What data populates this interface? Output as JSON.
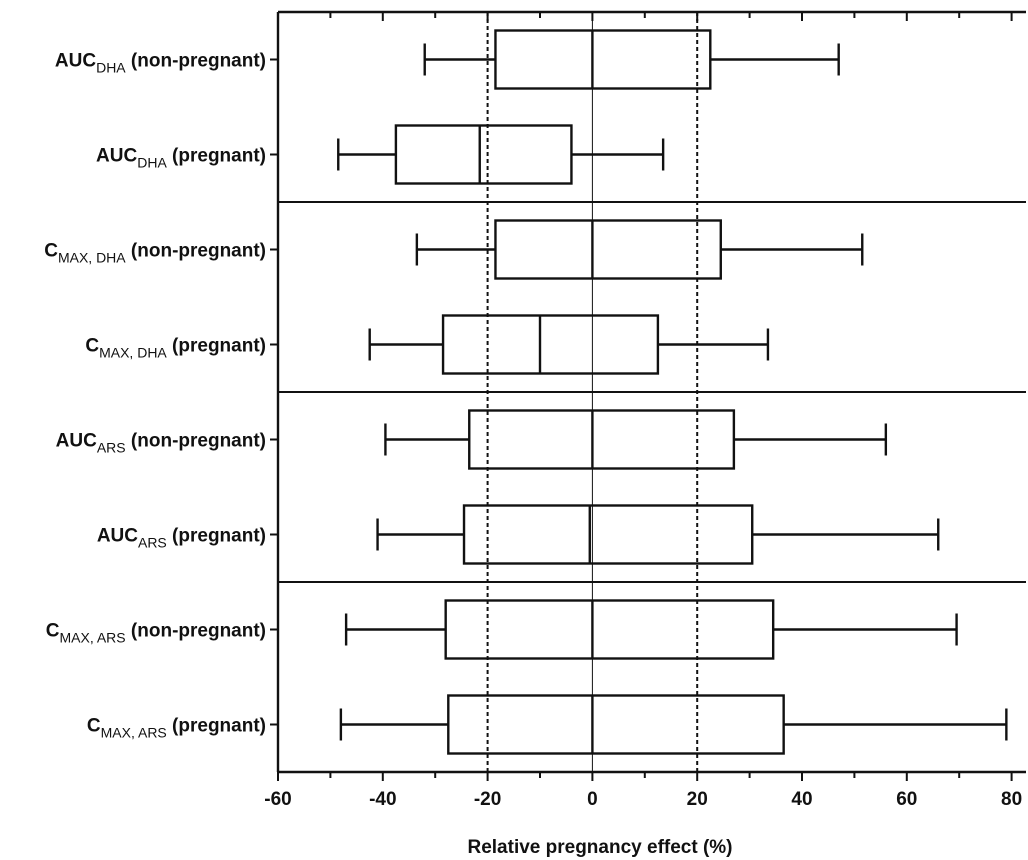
{
  "chart_data": {
    "type": "box",
    "orientation": "horizontal",
    "xlabel": "Relative pregnancy effect (%)",
    "xlim": [
      -60,
      83
    ],
    "xticks": [
      -60,
      -40,
      -20,
      0,
      20,
      40,
      60,
      80
    ],
    "xtick_labels": [
      "-60",
      "-40",
      "-20",
      "0",
      "20",
      "40",
      "60",
      "80"
    ],
    "minor_tick_step": 10,
    "reference_lines": {
      "dashed": [
        -20,
        20
      ],
      "solid": [
        0
      ]
    },
    "group_separators_after": [
      2,
      4,
      6
    ],
    "categories": [
      {
        "main": "AUC",
        "sub": "DHA",
        "suffix": " (non-pregnant)"
      },
      {
        "main": "AUC",
        "sub": "DHA",
        "suffix": " (pregnant)"
      },
      {
        "main": "C",
        "sub": "MAX, DHA",
        "suffix": " (non-pregnant)"
      },
      {
        "main": "C",
        "sub": "MAX, DHA",
        "suffix": " (pregnant)"
      },
      {
        "main": "AUC",
        "sub": "ARS",
        "suffix": " (non-pregnant)"
      },
      {
        "main": "AUC",
        "sub": "ARS",
        "suffix": " (pregnant)"
      },
      {
        "main": "C",
        "sub": "MAX, ARS",
        "suffix": " (non-pregnant)"
      },
      {
        "main": "C",
        "sub": "MAX, ARS",
        "suffix": " (pregnant)"
      }
    ],
    "boxes": [
      {
        "min": -32,
        "q1": -18.5,
        "median": 0,
        "q3": 22.5,
        "max": 47
      },
      {
        "min": -48.5,
        "q1": -37.5,
        "median": -21.5,
        "q3": -4,
        "max": 13.5
      },
      {
        "min": -33.5,
        "q1": -18.5,
        "median": 0,
        "q3": 24.5,
        "max": 51.5
      },
      {
        "min": -42.5,
        "q1": -28.5,
        "median": -10,
        "q3": 12.5,
        "max": 33.5
      },
      {
        "min": -39.5,
        "q1": -23.5,
        "median": 0,
        "q3": 27,
        "max": 56
      },
      {
        "min": -41,
        "q1": -24.5,
        "median": -0.5,
        "q3": 30.5,
        "max": 66
      },
      {
        "min": -47,
        "q1": -28,
        "median": 0,
        "q3": 34.5,
        "max": 69.5
      },
      {
        "min": -48,
        "q1": -27.5,
        "median": 0,
        "q3": 36.5,
        "max": 79
      }
    ]
  }
}
